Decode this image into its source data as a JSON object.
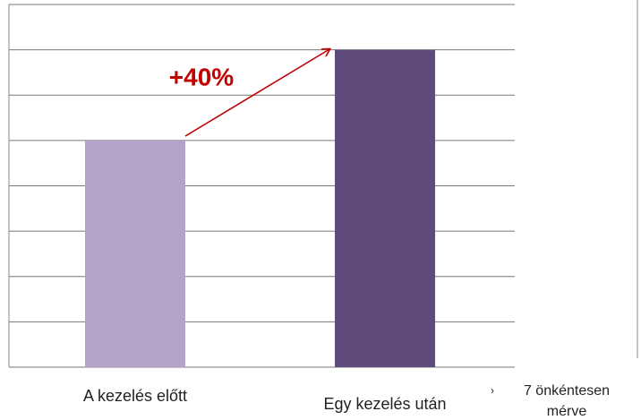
{
  "chart_data": {
    "type": "bar",
    "categories": [
      "A kezelés előtt",
      "Egy kezelés után"
    ],
    "values": [
      5,
      7
    ],
    "colors": [
      "#b3a3c8",
      "#5e4a7b"
    ],
    "ylim": [
      0,
      8
    ],
    "yticks": [
      0,
      1,
      2,
      3,
      4,
      5,
      6,
      7,
      8
    ],
    "grid": true,
    "annotations": [
      "+40%",
      "7 önkéntesen mérve"
    ]
  }
}
